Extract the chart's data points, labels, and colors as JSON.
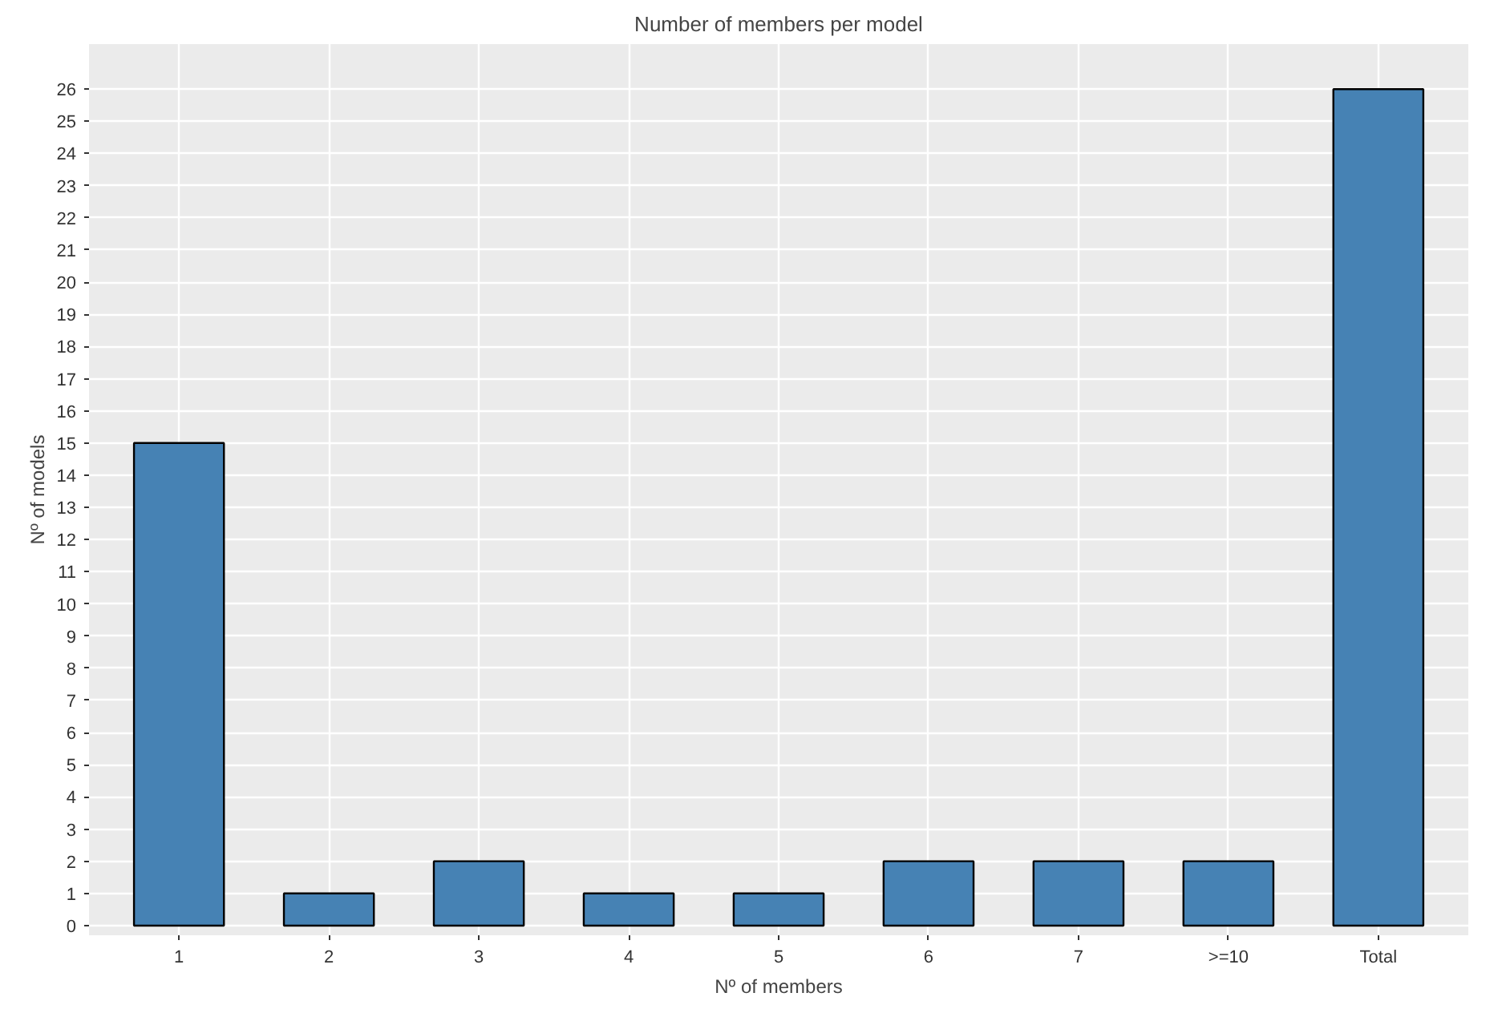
{
  "chart_data": {
    "type": "bar",
    "title": "Number of members per model",
    "xlabel": "Nº of members",
    "ylabel": "Nº of models",
    "categories": [
      "1",
      "2",
      "3",
      "4",
      "5",
      "6",
      "7",
      ">=10",
      "Total"
    ],
    "values": [
      15,
      1,
      2,
      1,
      1,
      2,
      2,
      2,
      26
    ],
    "color": "#4682b4",
    "ylim": [
      -0.3,
      27.4
    ],
    "yticks": [
      0,
      1,
      2,
      3,
      4,
      5,
      6,
      7,
      8,
      9,
      10,
      11,
      12,
      13,
      14,
      15,
      16,
      17,
      18,
      19,
      20,
      21,
      22,
      23,
      24,
      25,
      26
    ],
    "grid": true
  }
}
